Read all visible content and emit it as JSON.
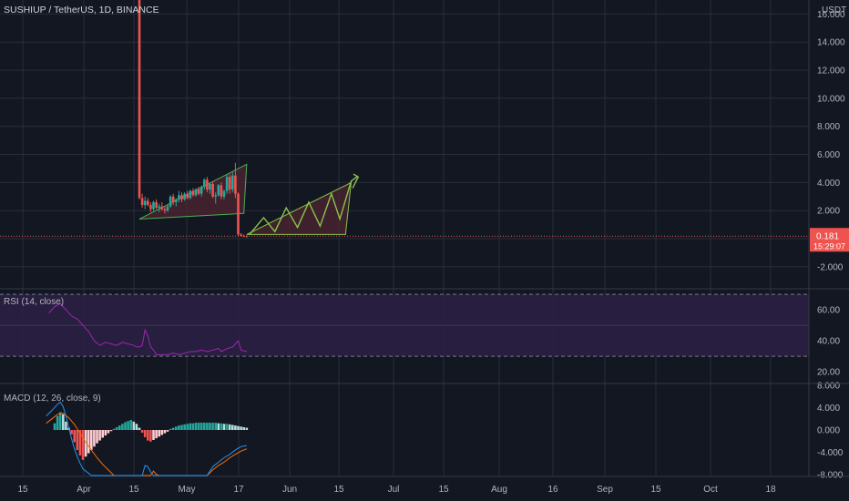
{
  "header": {
    "symbol_line": "SUSHIUP / TetherUS, 1D, BINANCE",
    "currency": "USDT"
  },
  "colors": {
    "background": "#131722",
    "grid": "#2a2e39",
    "up": "#26a69a",
    "down": "#ef5350",
    "pattern_line": "#4caf50",
    "pattern_projection": "#8bc34a",
    "pattern_fill": "#4a2431",
    "rsi_line": "#9c27b0",
    "rsi_band": "#2b1f44",
    "macd_line": "#2196f3",
    "signal_line": "#ff6d00",
    "price_label": "#ef5350"
  },
  "chart_data": [
    {
      "type": "candlestick",
      "name": "price",
      "ylim": [
        -3.5,
        17
      ],
      "y_ticks": [
        -2,
        0,
        2,
        4,
        6,
        8,
        10,
        12,
        14,
        16
      ],
      "y_tick_labels": [
        "-2.000",
        "0.000",
        "2.000",
        "4.000",
        "6.000",
        "8.000",
        "10.000",
        "12.000",
        "14.000",
        "16.000"
      ],
      "x_labels": [
        "15",
        "Apr",
        "15",
        "May",
        "17",
        "Jun",
        "15",
        "Jul",
        "15",
        "Aug",
        "16",
        "Sep",
        "15",
        "Oct",
        "18"
      ],
      "last_price": "0.181",
      "countdown": "15:29:07",
      "candles": [
        {
          "d": 0,
          "o": 18.0,
          "h": 18.0,
          "l": 2.8,
          "c": 2.9
        },
        {
          "d": 1,
          "o": 2.9,
          "h": 3.2,
          "l": 2.2,
          "c": 2.4
        },
        {
          "d": 2,
          "o": 2.4,
          "h": 3.0,
          "l": 2.1,
          "c": 2.7
        },
        {
          "d": 3,
          "o": 2.7,
          "h": 2.9,
          "l": 2.3,
          "c": 2.4
        },
        {
          "d": 4,
          "o": 2.4,
          "h": 2.6,
          "l": 1.9,
          "c": 2.1
        },
        {
          "d": 5,
          "o": 2.1,
          "h": 2.7,
          "l": 2.0,
          "c": 2.6
        },
        {
          "d": 6,
          "o": 2.6,
          "h": 2.8,
          "l": 2.1,
          "c": 2.2
        },
        {
          "d": 7,
          "o": 2.2,
          "h": 2.5,
          "l": 1.9,
          "c": 2.3
        },
        {
          "d": 8,
          "o": 2.3,
          "h": 2.6,
          "l": 2.0,
          "c": 2.1
        },
        {
          "d": 9,
          "o": 2.1,
          "h": 2.3,
          "l": 1.8,
          "c": 2.0
        },
        {
          "d": 10,
          "o": 2.0,
          "h": 2.4,
          "l": 1.9,
          "c": 2.3
        },
        {
          "d": 11,
          "o": 2.3,
          "h": 3.1,
          "l": 2.2,
          "c": 3.0
        },
        {
          "d": 12,
          "o": 3.0,
          "h": 3.2,
          "l": 2.4,
          "c": 2.6
        },
        {
          "d": 13,
          "o": 2.6,
          "h": 2.9,
          "l": 2.3,
          "c": 2.8
        },
        {
          "d": 14,
          "o": 2.8,
          "h": 3.4,
          "l": 2.6,
          "c": 3.1
        },
        {
          "d": 15,
          "o": 3.1,
          "h": 3.3,
          "l": 2.6,
          "c": 2.8
        },
        {
          "d": 16,
          "o": 2.8,
          "h": 3.3,
          "l": 2.7,
          "c": 3.2
        },
        {
          "d": 17,
          "o": 3.2,
          "h": 3.4,
          "l": 2.8,
          "c": 2.9
        },
        {
          "d": 18,
          "o": 2.9,
          "h": 3.5,
          "l": 2.8,
          "c": 3.4
        },
        {
          "d": 19,
          "o": 3.4,
          "h": 3.6,
          "l": 3.0,
          "c": 3.1
        },
        {
          "d": 20,
          "o": 3.1,
          "h": 3.6,
          "l": 3.0,
          "c": 3.5
        },
        {
          "d": 21,
          "o": 3.5,
          "h": 3.7,
          "l": 3.1,
          "c": 3.2
        },
        {
          "d": 22,
          "o": 3.2,
          "h": 3.8,
          "l": 3.0,
          "c": 3.7
        },
        {
          "d": 23,
          "o": 3.7,
          "h": 4.3,
          "l": 3.5,
          "c": 4.2
        },
        {
          "d": 24,
          "o": 4.2,
          "h": 4.4,
          "l": 3.3,
          "c": 3.5
        },
        {
          "d": 25,
          "o": 3.5,
          "h": 4.0,
          "l": 3.2,
          "c": 3.9
        },
        {
          "d": 26,
          "o": 3.9,
          "h": 4.1,
          "l": 2.9,
          "c": 3.0
        },
        {
          "d": 27,
          "o": 3.0,
          "h": 3.3,
          "l": 2.5,
          "c": 3.1
        },
        {
          "d": 28,
          "o": 3.1,
          "h": 3.9,
          "l": 3.0,
          "c": 3.8
        },
        {
          "d": 29,
          "o": 3.8,
          "h": 4.0,
          "l": 2.8,
          "c": 3.0
        },
        {
          "d": 30,
          "o": 3.0,
          "h": 3.5,
          "l": 2.8,
          "c": 3.4
        },
        {
          "d": 31,
          "o": 3.4,
          "h": 4.6,
          "l": 3.2,
          "c": 4.4
        },
        {
          "d": 32,
          "o": 4.4,
          "h": 4.6,
          "l": 3.2,
          "c": 3.5
        },
        {
          "d": 33,
          "o": 3.5,
          "h": 4.8,
          "l": 3.3,
          "c": 4.5
        },
        {
          "d": 34,
          "o": 4.5,
          "h": 5.4,
          "l": 2.9,
          "c": 3.2
        },
        {
          "d": 35,
          "o": 3.2,
          "h": 3.3,
          "l": 0.2,
          "c": 0.3
        },
        {
          "d": 36,
          "o": 0.3,
          "h": 0.4,
          "l": 0.15,
          "c": 0.2
        },
        {
          "d": 37,
          "o": 0.2,
          "h": 0.3,
          "l": 0.12,
          "c": 0.18
        },
        {
          "d": 38,
          "o": 0.18,
          "h": 0.25,
          "l": 0.12,
          "c": 0.181
        }
      ]
    },
    {
      "type": "line",
      "name": "RSI",
      "label": "RSI (14, close)",
      "ylim": [
        13,
        73
      ],
      "bands": [
        30,
        70
      ],
      "y_tick_labels": [
        "60.00",
        "40.00",
        "20.00"
      ],
      "y_ticks": [
        60,
        40,
        20
      ],
      "values": [
        [
          -32,
          58
        ],
        [
          -30,
          62
        ],
        [
          -28,
          64
        ],
        [
          -26,
          60
        ],
        [
          -24,
          56
        ],
        [
          -22,
          54
        ],
        [
          -20,
          50
        ],
        [
          -18,
          46
        ],
        [
          -16,
          40
        ],
        [
          -14,
          37
        ],
        [
          -12,
          39
        ],
        [
          -10,
          38
        ],
        [
          -8,
          37
        ],
        [
          -6,
          39
        ],
        [
          -4,
          38
        ],
        [
          -2,
          37
        ],
        [
          -1,
          36
        ],
        [
          0,
          36
        ],
        [
          1,
          37
        ],
        [
          2,
          47
        ],
        [
          3,
          43
        ],
        [
          4,
          36
        ],
        [
          5,
          34
        ],
        [
          6,
          31
        ],
        [
          7,
          31
        ],
        [
          8,
          31
        ],
        [
          10,
          31
        ],
        [
          12,
          32
        ],
        [
          14,
          31
        ],
        [
          16,
          32
        ],
        [
          18,
          33
        ],
        [
          20,
          33
        ],
        [
          22,
          34
        ],
        [
          24,
          33
        ],
        [
          26,
          34
        ],
        [
          28,
          35
        ],
        [
          29,
          33
        ],
        [
          30,
          34
        ],
        [
          31,
          35
        ],
        [
          33,
          36
        ],
        [
          34,
          38
        ],
        [
          35,
          40
        ],
        [
          36,
          34
        ],
        [
          38,
          33
        ]
      ]
    },
    {
      "type": "bar+line",
      "name": "MACD",
      "label": "MACD (12, 26, close, 9)",
      "ylim": [
        -8.2,
        8.2
      ],
      "y_ticks": [
        8,
        4,
        0,
        -4,
        -8
      ],
      "y_tick_labels": [
        "8.000",
        "4.000",
        "0.000",
        "-4.000",
        "-8.000"
      ],
      "histogram": [
        [
          -30,
          1.2
        ],
        [
          -29,
          2.5
        ],
        [
          -28,
          3.2
        ],
        [
          -27,
          2.8
        ],
        [
          -26,
          1.5
        ],
        [
          -25,
          0.4
        ],
        [
          -24,
          -0.8
        ],
        [
          -23,
          -2.2
        ],
        [
          -22,
          -3.6
        ],
        [
          -21,
          -4.6
        ],
        [
          -20,
          -5.4
        ],
        [
          -19,
          -4.8
        ],
        [
          -18,
          -4.2
        ],
        [
          -17,
          -3.6
        ],
        [
          -16,
          -3.0
        ],
        [
          -15,
          -2.4
        ],
        [
          -14,
          -1.9
        ],
        [
          -13,
          -1.4
        ],
        [
          -12,
          -1.0
        ],
        [
          -11,
          -0.6
        ],
        [
          -10,
          -0.2
        ],
        [
          -9,
          0.2
        ],
        [
          -8,
          0.5
        ],
        [
          -7,
          0.8
        ],
        [
          -6,
          1.1
        ],
        [
          -5,
          1.4
        ],
        [
          -4,
          1.6
        ],
        [
          -3,
          1.8
        ],
        [
          -2,
          1.5
        ],
        [
          -1,
          1.1
        ],
        [
          0,
          0.4
        ],
        [
          1,
          -0.5
        ],
        [
          2,
          -1.3
        ],
        [
          3,
          -1.9
        ],
        [
          4,
          -2.1
        ],
        [
          5,
          -1.8
        ],
        [
          6,
          -1.5
        ],
        [
          7,
          -1.2
        ],
        [
          8,
          -0.9
        ],
        [
          9,
          -0.6
        ],
        [
          10,
          -0.3
        ],
        [
          11,
          0.2
        ],
        [
          12,
          0.4
        ],
        [
          13,
          0.6
        ],
        [
          14,
          0.8
        ],
        [
          15,
          0.9
        ],
        [
          16,
          1.0
        ],
        [
          17,
          1.1
        ],
        [
          18,
          1.2
        ],
        [
          19,
          1.2
        ],
        [
          20,
          1.3
        ],
        [
          21,
          1.3
        ],
        [
          22,
          1.3
        ],
        [
          23,
          1.3
        ],
        [
          24,
          1.3
        ],
        [
          25,
          1.3
        ],
        [
          26,
          1.3
        ],
        [
          27,
          1.3
        ],
        [
          28,
          1.2
        ],
        [
          29,
          1.2
        ],
        [
          30,
          1.1
        ],
        [
          31,
          1.1
        ],
        [
          32,
          1.0
        ],
        [
          33,
          0.9
        ],
        [
          34,
          0.8
        ],
        [
          35,
          0.7
        ],
        [
          36,
          0.6
        ],
        [
          37,
          0.5
        ],
        [
          38,
          0.4
        ]
      ],
      "macd": [
        [
          -33,
          2.5
        ],
        [
          -31,
          3.5
        ],
        [
          -29,
          4.6
        ],
        [
          -28,
          5.0
        ],
        [
          -27,
          4.2
        ],
        [
          -26,
          2.5
        ],
        [
          -25,
          0.4
        ],
        [
          -24,
          -1.6
        ],
        [
          -23,
          -3.4
        ],
        [
          -22,
          -4.8
        ],
        [
          -21,
          -6.0
        ],
        [
          -20,
          -7.0
        ],
        [
          -19,
          -7.4
        ],
        [
          -18,
          -7.8
        ],
        [
          -17,
          -8.2
        ],
        [
          1,
          -8.2
        ],
        [
          2,
          -6.4
        ],
        [
          3,
          -6.6
        ],
        [
          4,
          -7.6
        ],
        [
          5,
          -8.2
        ],
        [
          24,
          -8.2
        ],
        [
          26,
          -6.6
        ],
        [
          28,
          -5.8
        ],
        [
          30,
          -5.0
        ],
        [
          32,
          -4.4
        ],
        [
          34,
          -3.6
        ],
        [
          36,
          -3.0
        ],
        [
          38,
          -2.8
        ]
      ],
      "signal": [
        [
          -33,
          1.2
        ],
        [
          -31,
          2.0
        ],
        [
          -29,
          2.8
        ],
        [
          -27,
          3.0
        ],
        [
          -25,
          2.2
        ],
        [
          -23,
          1.0
        ],
        [
          -21,
          -0.6
        ],
        [
          -19,
          -2.2
        ],
        [
          -17,
          -3.6
        ],
        [
          -15,
          -5.0
        ],
        [
          -13,
          -6.2
        ],
        [
          -11,
          -7.2
        ],
        [
          -9,
          -8.2
        ],
        [
          4,
          -8.2
        ],
        [
          5,
          -7.4
        ],
        [
          6,
          -8.0
        ],
        [
          7,
          -8.2
        ],
        [
          24,
          -8.2
        ],
        [
          26,
          -7.2
        ],
        [
          28,
          -6.4
        ],
        [
          30,
          -5.8
        ],
        [
          32,
          -5.0
        ],
        [
          34,
          -4.4
        ],
        [
          36,
          -3.8
        ],
        [
          38,
          -3.4
        ]
      ]
    }
  ]
}
